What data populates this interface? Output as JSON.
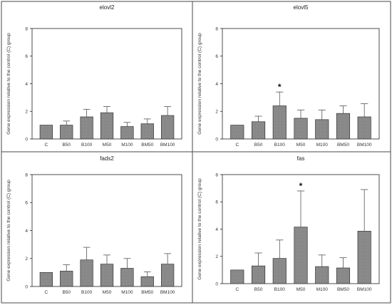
{
  "chart_data": [
    {
      "type": "bar",
      "title": "elovl2",
      "ylabel": "Gene expression relative to the control (C) group",
      "categories": [
        "C",
        "B50",
        "B100",
        "M50",
        "M100",
        "BM50",
        "BM100"
      ],
      "values": [
        1.0,
        1.0,
        1.6,
        1.9,
        0.9,
        1.1,
        1.7
      ],
      "errors": [
        0.0,
        0.3,
        0.55,
        0.45,
        0.3,
        0.35,
        0.65
      ],
      "significant": [
        false,
        false,
        false,
        false,
        false,
        false,
        false
      ],
      "ylim": [
        0,
        8
      ],
      "yticks": [
        "0",
        "2",
        "4",
        "6",
        "8"
      ]
    },
    {
      "type": "bar",
      "title": "elovl5",
      "ylabel": "Gene expression relative to the control (C) group",
      "categories": [
        "C",
        "B50",
        "B100",
        "M50",
        "M100",
        "BM50",
        "BM100"
      ],
      "values": [
        1.0,
        1.25,
        2.4,
        1.5,
        1.4,
        1.85,
        1.6
      ],
      "errors": [
        0.0,
        0.4,
        1.0,
        0.6,
        0.7,
        0.55,
        0.95
      ],
      "significant": [
        false,
        false,
        true,
        false,
        false,
        false,
        false
      ],
      "ylim": [
        0,
        8
      ],
      "yticks": [
        "0",
        "2",
        "4",
        "6",
        "8"
      ]
    },
    {
      "type": "bar",
      "title": "fads2",
      "ylabel": "Gene expression relative to the control (C) group",
      "categories": [
        "C",
        "B50",
        "B100",
        "M50",
        "M100",
        "BM50",
        "BM100"
      ],
      "values": [
        1.0,
        1.1,
        1.9,
        1.6,
        1.3,
        0.7,
        1.6
      ],
      "errors": [
        0.0,
        0.45,
        0.9,
        0.65,
        0.7,
        0.35,
        0.75
      ],
      "significant": [
        false,
        false,
        false,
        false,
        false,
        false,
        false
      ],
      "ylim": [
        0,
        8
      ],
      "yticks": [
        "0",
        "2",
        "4",
        "6",
        "8"
      ]
    },
    {
      "type": "bar",
      "title": "fas",
      "ylabel": "Gene expression relative to the control (C) group",
      "categories": [
        "C",
        "B50",
        "B100",
        "M50",
        "M100",
        "BM50",
        "BM100"
      ],
      "values": [
        1.0,
        1.3,
        1.85,
        4.15,
        1.25,
        1.15,
        3.85
      ],
      "errors": [
        0.0,
        0.95,
        1.35,
        2.65,
        0.85,
        0.75,
        3.05
      ],
      "significant": [
        false,
        false,
        false,
        true,
        false,
        false,
        false
      ],
      "ylim": [
        0,
        8
      ],
      "yticks": [
        "0",
        "2",
        "4",
        "6",
        "8"
      ]
    }
  ],
  "significance_marker": "*",
  "colors": {
    "bar_fill": "#8c8c8c",
    "bar_stroke": "#333333",
    "frame": "#4a4a4a"
  }
}
